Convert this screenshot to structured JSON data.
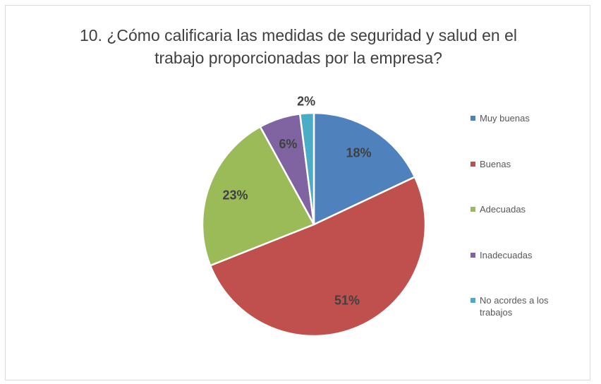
{
  "chart_data": {
    "type": "pie",
    "title": "10. ¿Cómo calificaria las medidas de seguridad y salud en el trabajo proporcionadas por la empresa?",
    "categories": [
      "Muy buenas",
      "Buenas",
      "Adecuadas",
      "Inadecuadas",
      "No acordes a los trabajos"
    ],
    "values": [
      18,
      51,
      23,
      6,
      2
    ],
    "value_labels": [
      "18%",
      "51%",
      "23%",
      "6%",
      "2%"
    ],
    "colors": [
      "#4f81bd",
      "#c0504d",
      "#9bbb59",
      "#8064a2",
      "#4bacc6"
    ],
    "legend": "right"
  }
}
